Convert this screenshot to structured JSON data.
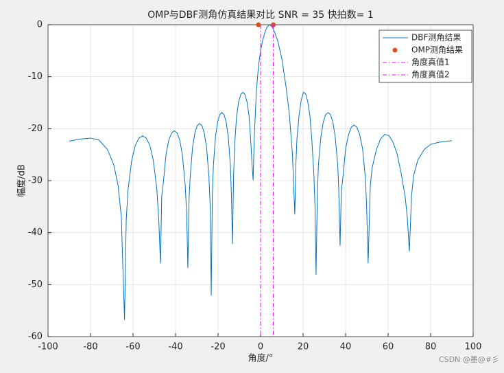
{
  "chart_data": {
    "type": "line",
    "title": "OMP与DBF测角仿真结果对比 SNR = 35  快拍数= 1",
    "xlabel": "角度/°",
    "ylabel": "幅度/dB",
    "xlim": [
      -100,
      100
    ],
    "xticks": [
      -100,
      -80,
      -60,
      -40,
      -20,
      0,
      20,
      40,
      60,
      80,
      100
    ],
    "ylim": [
      -60,
      0
    ],
    "yticks": [
      -60,
      -50,
      -40,
      -30,
      -20,
      -10,
      0
    ],
    "grid": true,
    "legend": "top-right",
    "series": [
      {
        "name": "DBF测角结果",
        "color": "#0072BD",
        "style": "line",
        "x": [
          -90,
          -85,
          -80,
          -76,
          -72,
          -69,
          -67,
          -65.5,
          -64,
          -63.2,
          -62.3,
          -60.6,
          -58.9,
          -57.2,
          -55.5,
          -53.8,
          -52.1,
          -50.5,
          -48.8,
          -47.9,
          -47.1,
          -46.5,
          -45.8,
          -44.5,
          -43.2,
          -41.8,
          -40.6,
          -39.3,
          -38,
          -36.8,
          -35.5,
          -34.8,
          -34.2,
          -33.6,
          -33.1,
          -32,
          -30.9,
          -29.8,
          -28.7,
          -27.6,
          -26.5,
          -25.4,
          -24.3,
          -23.7,
          -23.2,
          -22.7,
          -22.2,
          -21.2,
          -20.2,
          -19.2,
          -18.2,
          -17.2,
          -16.2,
          -15.2,
          -14.2,
          -13.7,
          -13.2,
          -12.7,
          -12.2,
          -11.3,
          -10.3,
          -9.3,
          -8.3,
          -7.4,
          -6.4,
          -5.4,
          -4.5,
          -4,
          -3.5,
          -3,
          -2,
          -1,
          0,
          1,
          2,
          3,
          4,
          5,
          6,
          8,
          10,
          12,
          13.5,
          15,
          16.1,
          16.6,
          17.1,
          18.1,
          19.1,
          20.2,
          21.2,
          22.2,
          23.2,
          24.1,
          25.1,
          25.6,
          26.1,
          26.7,
          27.2,
          28.4,
          29.5,
          30.6,
          31.8,
          32.9,
          34,
          35.1,
          36.3,
          36.8,
          37.4,
          38,
          38.7,
          40,
          41.4,
          42.7,
          44,
          45.3,
          46.6,
          48,
          49.3,
          49.9,
          50.6,
          51.6,
          52.5,
          54.5,
          56.4,
          58.4,
          60.3,
          62.2,
          64.2,
          66.1,
          68,
          69,
          70,
          71,
          72,
          74,
          77,
          80,
          84,
          88,
          90
        ],
        "values": [
          -22.4,
          -22.0,
          -21.8,
          -22.2,
          -24,
          -27,
          -31,
          -37,
          -56.8,
          -37.5,
          -31.6,
          -26,
          -23.2,
          -21.8,
          -21.4,
          -21.8,
          -23.2,
          -26,
          -31.6,
          -37.5,
          -45.9,
          -33,
          -30.6,
          -25,
          -22.2,
          -20.8,
          -20.4,
          -20.8,
          -22.2,
          -25,
          -30.6,
          -36,
          -46.8,
          -33,
          -29.2,
          -23.6,
          -20.8,
          -19.4,
          -19,
          -19.4,
          -20.8,
          -23.6,
          -29.2,
          -35,
          -52.1,
          -33,
          -27.1,
          -21.5,
          -18.7,
          -17.3,
          -16.9,
          -17.3,
          -18.7,
          -21.5,
          -27.1,
          -33,
          -42.2,
          -29,
          -23.2,
          -17.6,
          -14.8,
          -13.4,
          -13,
          -13.4,
          -14.8,
          -17.6,
          -23.2,
          -27,
          -29.9,
          -22,
          -13,
          -8,
          -5,
          -3,
          -1.5,
          -0.5,
          0,
          -0.2,
          -0.8,
          -3,
          -6.5,
          -12,
          -17,
          -25,
          -36.5,
          -27,
          -22,
          -17.5,
          -14.5,
          -13,
          -13.3,
          -14.8,
          -17.5,
          -22,
          -29,
          -35,
          -48.1,
          -33,
          -27,
          -21.5,
          -18.7,
          -17.3,
          -16.9,
          -17.3,
          -18.7,
          -21.5,
          -27,
          -32,
          -42.5,
          -32,
          -29.5,
          -23.9,
          -21.1,
          -19.7,
          -19.3,
          -19.7,
          -21.1,
          -23.9,
          -29.5,
          -35,
          -45.9,
          -31,
          -27.5,
          -24,
          -22,
          -21.1,
          -21.3,
          -22.5,
          -24.8,
          -28.5,
          -33,
          -37,
          -43.6,
          -33,
          -29,
          -26,
          -24,
          -23,
          -22.6,
          -22.4,
          -22.3
        ]
      },
      {
        "name": "OMP测角结果",
        "color": "#D95319",
        "style": "marker",
        "x": [
          -1,
          6
        ],
        "values": [
          0,
          0
        ]
      },
      {
        "name": "角度真值1",
        "color": "#FF00FF",
        "style": "dashdot",
        "x": [
          0,
          0
        ],
        "values": [
          0,
          -60
        ]
      },
      {
        "name": "角度真值2",
        "color": "#FF00FF",
        "style": "dashdot",
        "x": [
          6,
          6
        ],
        "values": [
          0,
          -60
        ]
      }
    ],
    "watermark": "CSDN @墨@#彡"
  }
}
